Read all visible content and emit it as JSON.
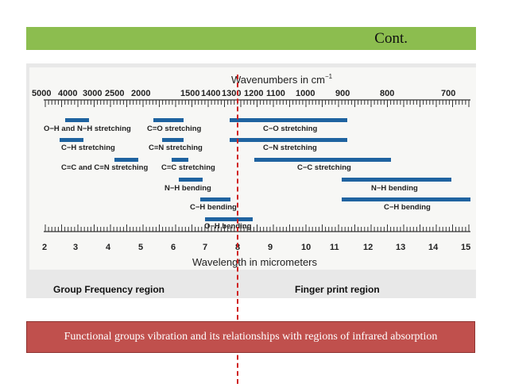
{
  "header": {
    "title": "Cont."
  },
  "chart": {
    "top_axis_title": "Wavenumbers in cm",
    "top_axis_sup": "−1",
    "top_ticks": [
      "5000",
      "4000",
      "3000",
      "2500",
      "2000",
      "1500",
      "1400",
      "1300",
      "1200",
      "1100",
      "1000",
      "900",
      "800",
      "700"
    ],
    "bottom_axis_title": "Wavelength in micrometers",
    "bottom_ticks": [
      "2",
      "3",
      "4",
      "5",
      "6",
      "7",
      "8",
      "9",
      "10",
      "11",
      "12",
      "13",
      "14",
      "15"
    ],
    "bar_labels": [
      "O−H  and N−H stretching",
      "C=O stretching",
      "C−O stretching",
      "C−H stretching",
      "C≡N stretching",
      "C−N stretching",
      "C≡C and C≡N stretching",
      "C=C stretching",
      "C−C stretching",
      "N−H bending",
      "N−H bending",
      "C−H bending",
      "C−H bending",
      "O−H bending"
    ],
    "accent_color": "#1f63a0",
    "divider_color": "#d02020"
  },
  "regions": {
    "left": "Group Frequency region",
    "right": "Finger print region"
  },
  "caption": "Functional groups vibration and its relationships with regions of infrared absorption"
}
